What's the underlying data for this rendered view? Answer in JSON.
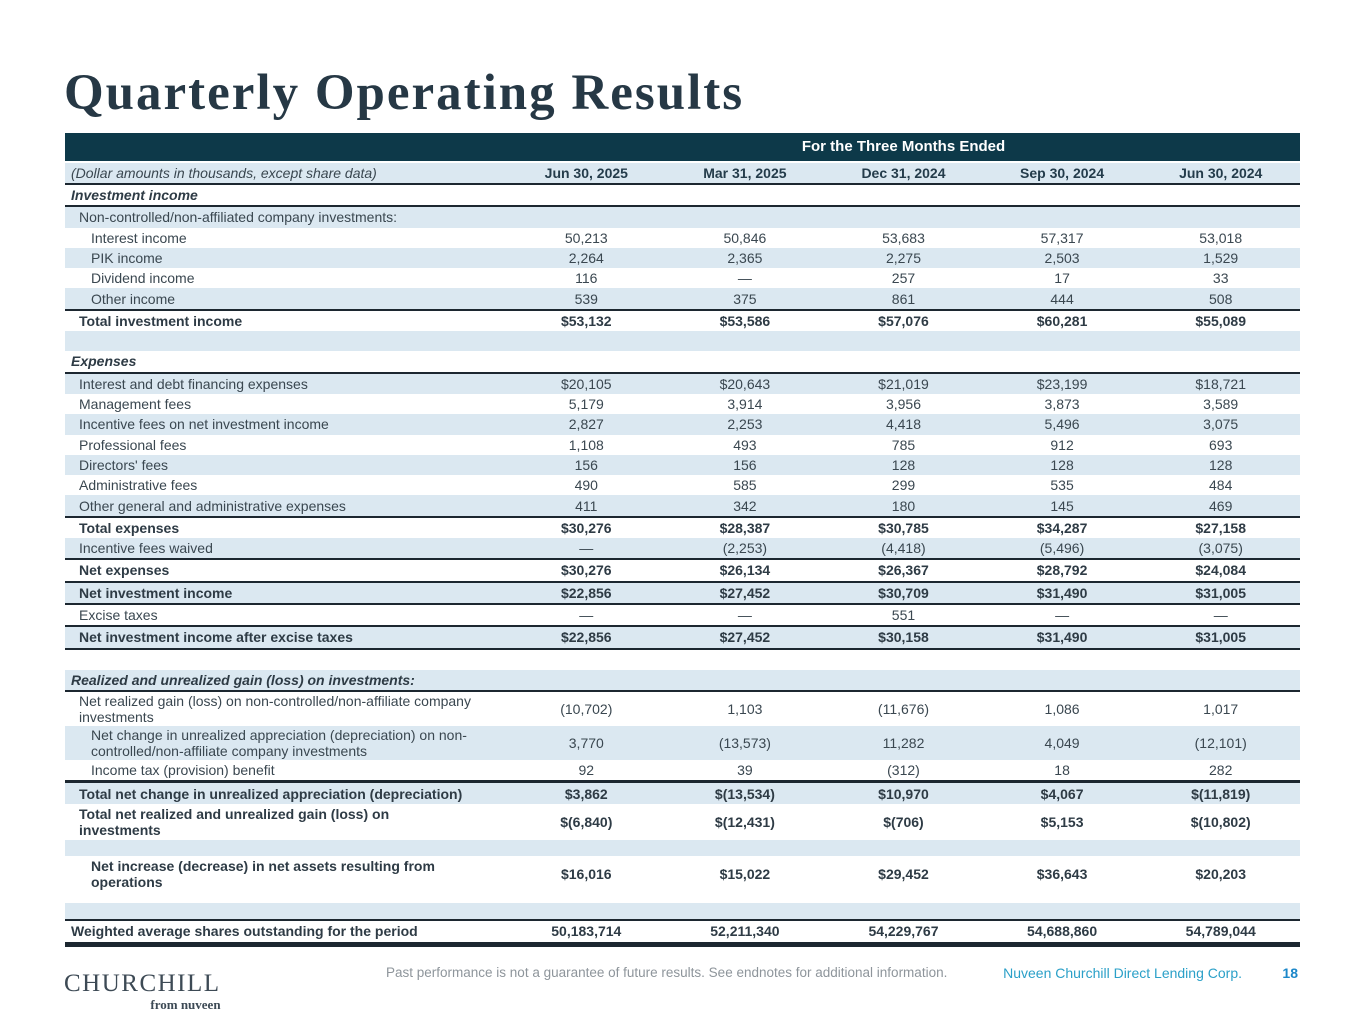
{
  "title": "Quarterly Operating Results",
  "table": {
    "band_title": "For the Three Months Ended",
    "unit_note": "(Dollar amounts in thousands, except share data)",
    "columns": [
      "Jun 30, 2025",
      "Mar 31, 2025",
      "Dec 31, 2024",
      "Sep 30, 2024",
      "Jun 30, 2024"
    ],
    "rows": [
      {
        "label": "Investment income",
        "bold": true,
        "italic": true,
        "bb": 2
      },
      {
        "label": "Non-controlled/non-affiliated company investments:",
        "indent": 1,
        "shaded": true
      },
      {
        "label": "Interest income",
        "indent": 2,
        "values": [
          "50,213",
          "50,846",
          "53,683",
          "57,317",
          "53,018"
        ]
      },
      {
        "label": "PIK income",
        "indent": 2,
        "shaded": true,
        "values": [
          "2,264",
          "2,365",
          "2,275",
          "2,503",
          "1,529"
        ]
      },
      {
        "label": "Dividend income",
        "indent": 2,
        "values": [
          "116",
          "—",
          "257",
          "17",
          "33"
        ]
      },
      {
        "label": "Other income",
        "indent": 2,
        "shaded": true,
        "values": [
          "539",
          "375",
          "861",
          "444",
          "508"
        ]
      },
      {
        "label": "Total investment income",
        "indent": 1,
        "bold": true,
        "bt": 2,
        "values": [
          "$53,132",
          "$53,586",
          "$57,076",
          "$60,281",
          "$55,089"
        ]
      },
      {
        "blank": true,
        "shaded": true
      },
      {
        "label": "Expenses",
        "bold": true,
        "italic": true,
        "bb": 2
      },
      {
        "label": "Interest and debt financing expenses",
        "indent": 1,
        "shaded": true,
        "values": [
          "$20,105",
          "$20,643",
          "$21,019",
          "$23,199",
          "$18,721"
        ]
      },
      {
        "label": "Management fees",
        "indent": 1,
        "values": [
          "5,179",
          "3,914",
          "3,956",
          "3,873",
          "3,589"
        ]
      },
      {
        "label": "Incentive fees on net investment income",
        "indent": 1,
        "shaded": true,
        "values": [
          "2,827",
          "2,253",
          "4,418",
          "5,496",
          "3,075"
        ]
      },
      {
        "label": "Professional fees",
        "indent": 1,
        "values": [
          "1,108",
          "493",
          "785",
          "912",
          "693"
        ]
      },
      {
        "label": "Directors' fees",
        "indent": 1,
        "shaded": true,
        "values": [
          "156",
          "156",
          "128",
          "128",
          "128"
        ]
      },
      {
        "label": "Administrative fees",
        "indent": 1,
        "values": [
          "490",
          "585",
          "299",
          "535",
          "484"
        ]
      },
      {
        "label": "Other general and administrative expenses",
        "indent": 1,
        "shaded": true,
        "values": [
          "411",
          "342",
          "180",
          "145",
          "469"
        ]
      },
      {
        "label": "Total expenses",
        "indent": 1,
        "bold": true,
        "bt": 2,
        "values": [
          "$30,276",
          "$28,387",
          "$30,785",
          "$34,287",
          "$27,158"
        ]
      },
      {
        "label": "Incentive fees waived",
        "indent": 1,
        "shaded": true,
        "values": [
          "—",
          "(2,253)",
          "(4,418)",
          "(5,496)",
          "(3,075)"
        ]
      },
      {
        "label": "Net expenses",
        "indent": 1,
        "bold": true,
        "bt": 2,
        "values": [
          "$30,276",
          "$26,134",
          "$26,367",
          "$28,792",
          "$24,084"
        ]
      },
      {
        "label": "Net investment income",
        "indent": 1,
        "bold": true,
        "shaded": true,
        "bt": 2,
        "bb": 2,
        "values": [
          "$22,856",
          "$27,452",
          "$30,709",
          "$31,490",
          "$31,005"
        ]
      },
      {
        "label": "Excise taxes",
        "indent": 1,
        "values": [
          "—",
          "—",
          "551",
          "—",
          "—"
        ]
      },
      {
        "label": "Net investment income after excise taxes",
        "indent": 1,
        "bold": true,
        "shaded": true,
        "bt": 2,
        "bb": 2,
        "values": [
          "$22,856",
          "$27,452",
          "$30,158",
          "$31,490",
          "$31,005"
        ]
      },
      {
        "blank": true
      },
      {
        "label": "Realized and unrealized gain (loss) on investments:",
        "bold": true,
        "italic": true,
        "shaded": true,
        "bb": 2
      },
      {
        "label": "Net realized gain (loss) on non-controlled/non-affiliate company\ninvestments",
        "indent": 1,
        "tall": 1,
        "values": [
          "(10,702)",
          "1,103",
          "(11,676)",
          "1,086",
          "1,017"
        ]
      },
      {
        "label": "Net change in unrealized appreciation (depreciation) on non-\ncontrolled/non-affiliate company investments",
        "indent": 2,
        "shaded": true,
        "tall": 1,
        "values": [
          "3,770",
          "(13,573)",
          "11,282",
          "4,049",
          "(12,101)"
        ]
      },
      {
        "label": "Income tax (provision) benefit",
        "indent": 2,
        "values": [
          "92",
          "39",
          "(312)",
          "18",
          "282"
        ]
      },
      {
        "label": "Total net change in unrealized appreciation (depreciation)",
        "indent": 1,
        "bold": true,
        "shaded": true,
        "bt": 3,
        "values": [
          "$3,862",
          "$(13,534)",
          "$10,970",
          "$4,067",
          "$(11,819)"
        ]
      },
      {
        "label": "Total net realized and unrealized gain (loss) on\ninvestments",
        "indent": 1,
        "bold": true,
        "tall": 2,
        "values": [
          "$(6,840)",
          "$(12,431)",
          "$(706)",
          "$5,153",
          "$(10,802)"
        ]
      },
      {
        "blank": true,
        "shaded": true,
        "size": "s"
      },
      {
        "label": "Net increase (decrease) in net assets resulting from\noperations",
        "indent": 2,
        "bold": true,
        "tall": 2,
        "values": [
          "$16,016",
          "$15,022",
          "$29,452",
          "$36,643",
          "$20,203"
        ]
      },
      {
        "blank": true,
        "size": "xs"
      },
      {
        "blank": true,
        "shaded": true,
        "size": "m"
      },
      {
        "label": "Weighted average shares outstanding for the period",
        "bold": true,
        "bt": 2,
        "bb": 4,
        "wavg": true,
        "values": [
          "50,183,714",
          "52,211,340",
          "54,229,767",
          "54,688,860",
          "54,789,044"
        ]
      }
    ]
  },
  "footer": {
    "logo_primary": "CHURCHILL",
    "logo_secondary": "from nuveen",
    "disclaimer": "Past performance is not a guarantee of future results. See endnotes for additional information.",
    "entity": "Nuveen Churchill Direct Lending Corp.",
    "page_number": "18"
  },
  "colors": {
    "header_band": "#0d3949",
    "row_shade": "#dbe8f1",
    "rule_dark": "#1c2730",
    "title_text": "#263845",
    "body_text": "#3a4750",
    "accent_teal": "#2ba0c8",
    "page_number_blue": "#1b87c9",
    "footnote_gray": "#8e959b"
  }
}
